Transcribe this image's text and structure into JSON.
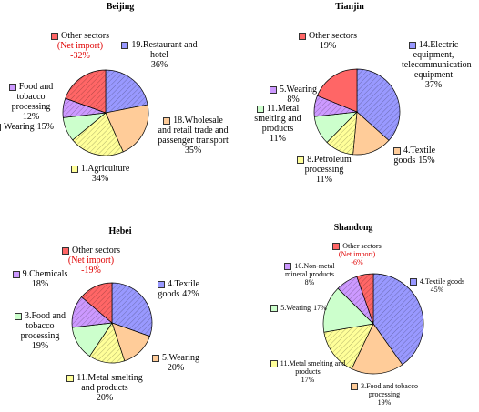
{
  "chart_data": [
    {
      "type": "pie",
      "title": "Beijing",
      "note": "(Net import)",
      "categories": [
        "19.Restaurant and hotel",
        "18.Wholesale and retail trade and passenger transport",
        "1.Agriculture",
        "Wearing",
        "Food and tobacco processing",
        "Other sectors"
      ],
      "values": [
        36,
        35,
        34,
        15,
        12,
        -32
      ],
      "value_labels": [
        "36%",
        "35%",
        "34%",
        "15%",
        "12%",
        "-32%"
      ],
      "colors": [
        "#9999ff",
        "#ffcc99",
        "#ffff99",
        "#ccffcc",
        "#cc99ff",
        "#ff6666"
      ]
    },
    {
      "type": "pie",
      "title": "Tianjin",
      "categories": [
        "14.Electric equipment, telecommunication equipment",
        "4.Textile goods",
        "8.Petroleum processing",
        "11.Metal smelting and products",
        "5.Wearing",
        "Other sectors"
      ],
      "values": [
        37,
        15,
        11,
        11,
        8,
        19
      ],
      "value_labels": [
        "37%",
        "15%",
        "11%",
        "11%",
        "8%",
        "19%"
      ],
      "colors": [
        "#9999ff",
        "#ffcc99",
        "#ffff99",
        "#ccffcc",
        "#cc99ff",
        "#ff6666"
      ]
    },
    {
      "type": "pie",
      "title": "Hebei",
      "note": "(Net import)",
      "categories": [
        "4.Textile goods",
        "5.Wearing",
        "11.Metal smelting and products",
        "3.Food and tobacco processing",
        "9.Chemicals",
        "Other sectors"
      ],
      "values": [
        42,
        20,
        20,
        19,
        18,
        -19
      ],
      "value_labels": [
        "42%",
        "20%",
        "20%",
        "19%",
        "18%",
        "-19%"
      ],
      "colors": [
        "#9999ff",
        "#ffcc99",
        "#ffff99",
        "#ccffcc",
        "#cc99ff",
        "#ff6666"
      ]
    },
    {
      "type": "pie",
      "title": "Shandong",
      "note": "(Net import)",
      "categories": [
        "4.Textile goods",
        "3.Food and tobacco processing",
        "11.Metal smelting and products",
        "5.Wearing",
        "10.Non-metal mineral products",
        "Other sectors"
      ],
      "values": [
        45,
        19,
        17,
        17,
        8,
        -6
      ],
      "value_labels": [
        "45%",
        "19%",
        "17%",
        "17%",
        "8%",
        "-6%"
      ],
      "colors": [
        "#9999ff",
        "#ffcc99",
        "#ffff99",
        "#ccffcc",
        "#cc99ff",
        "#ff6666"
      ]
    }
  ]
}
